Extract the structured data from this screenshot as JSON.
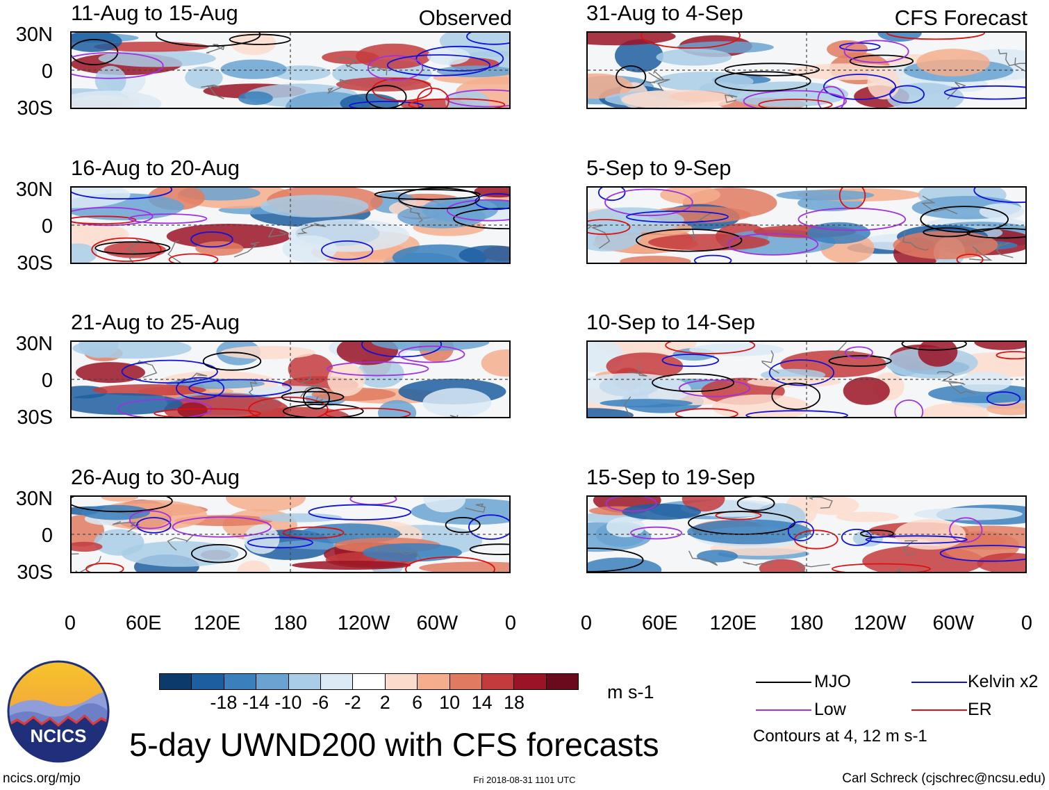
{
  "panels": {
    "left": [
      {
        "title": "11-Aug to 15-Aug",
        "corner": "Observed"
      },
      {
        "title": "16-Aug to 20-Aug",
        "corner": ""
      },
      {
        "title": "21-Aug to 25-Aug",
        "corner": ""
      },
      {
        "title": "26-Aug to 30-Aug",
        "corner": ""
      }
    ],
    "right": [
      {
        "title": "31-Aug to 4-Sep",
        "corner": "CFS Forecast"
      },
      {
        "title": "5-Sep to 9-Sep",
        "corner": ""
      },
      {
        "title": "10-Sep to 14-Sep",
        "corner": ""
      },
      {
        "title": "15-Sep to 19-Sep",
        "corner": ""
      }
    ]
  },
  "lat_labels": [
    "30N",
    "0",
    "30S"
  ],
  "lon_labels": [
    "0",
    "60E",
    "120E",
    "180",
    "120W",
    "60W",
    "0"
  ],
  "colorbar": {
    "colors": [
      "#0b3a6b",
      "#1d5ea0",
      "#3a80bd",
      "#6aa3d1",
      "#a9cde6",
      "#dbeaf5",
      "#ffffff",
      "#fbdccc",
      "#f4ae8d",
      "#e07b62",
      "#c43b3d",
      "#9a1426",
      "#6a0a1c"
    ],
    "ticks": [
      "-18",
      "-14",
      "-10",
      "-6",
      "-2",
      "2",
      "6",
      "10",
      "14",
      "18"
    ],
    "units": "m s-1"
  },
  "legend": {
    "items": [
      {
        "label": "MJO",
        "color": "#000000"
      },
      {
        "label": "Kelvin x2",
        "color": "#1010dd"
      },
      {
        "label": "Low",
        "color": "#a030e0"
      },
      {
        "label": "ER",
        "color": "#dd1010"
      }
    ],
    "note": "Contours at 4, 12 m s-1"
  },
  "logo": {
    "text": "NCICS"
  },
  "main_title": "5-day UWND200 with CFS forecasts",
  "footer": {
    "left": "ncics.org/mjo",
    "center": "Fri 2018-08-31 1101 UTC",
    "right": "Carl Schreck (cjschrec@ncsu.edu)"
  }
}
